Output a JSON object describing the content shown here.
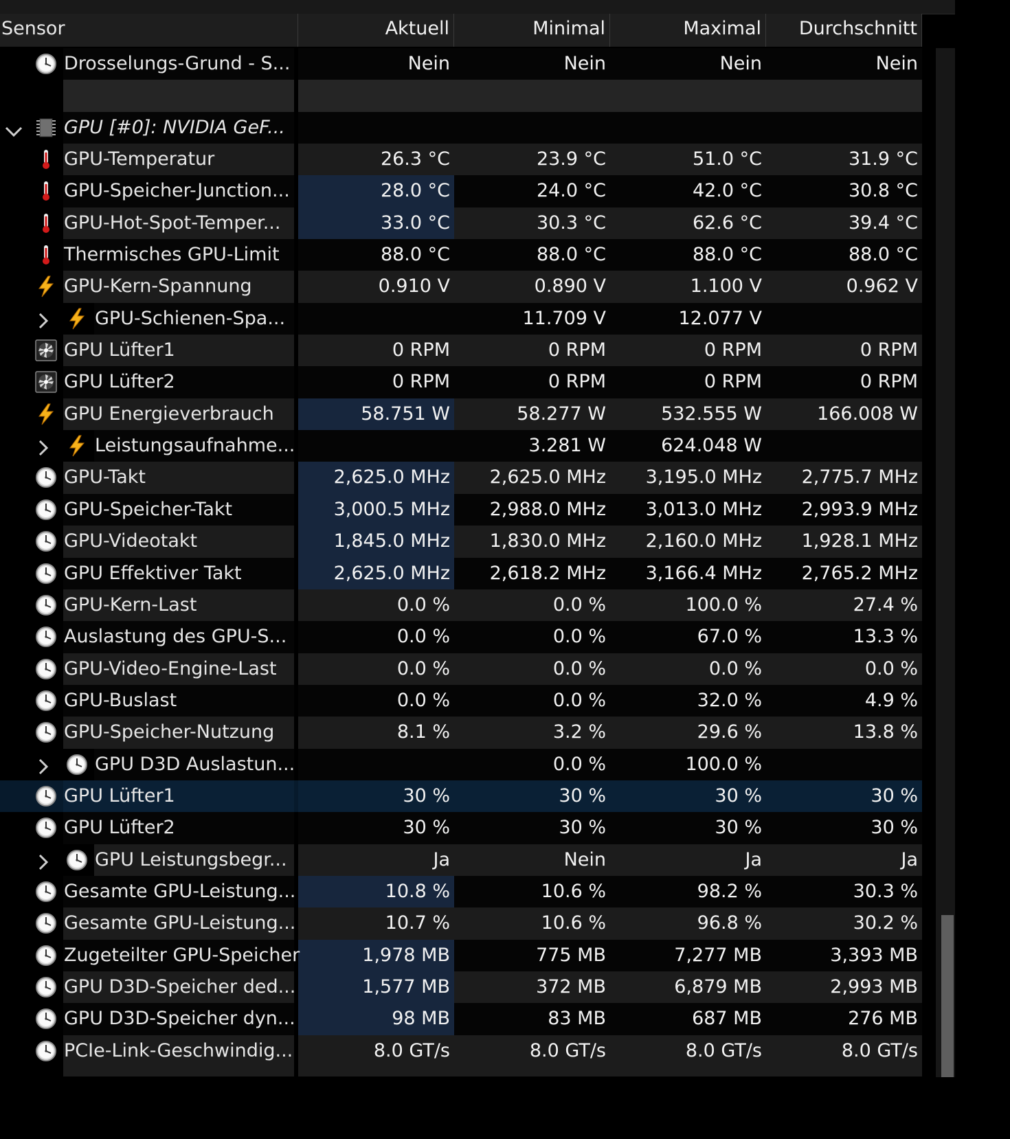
{
  "header": {
    "sensor": "Sensor",
    "current": "Aktuell",
    "min": "Minimal",
    "max": "Maximal",
    "avg": "Durchschnitt"
  },
  "rows": [
    {
      "label": "Drosselungs-Grund - S...",
      "icon": "clock-icon",
      "cur": "Nein",
      "min": "Nein",
      "max": "Nein",
      "avg": "Nein"
    },
    {
      "label": "",
      "blank": true,
      "cur": "",
      "min": "",
      "max": "",
      "avg": ""
    },
    {
      "label": "GPU [#0]: NVIDIA GeF...",
      "icon": "chip-icon",
      "group": true,
      "cur": "",
      "min": "",
      "max": "",
      "avg": ""
    },
    {
      "label": "GPU-Temperatur",
      "icon": "thermometer-icon",
      "cur": "26.3 °C",
      "min": "23.9 °C",
      "max": "51.0 °C",
      "avg": "31.9 °C"
    },
    {
      "label": "GPU-Speicher-Junction...",
      "icon": "thermometer-icon",
      "cur": "28.0 °C",
      "min": "24.0 °C",
      "max": "42.0 °C",
      "avg": "30.8 °C",
      "hl": true
    },
    {
      "label": "GPU-Hot-Spot-Temper...",
      "icon": "thermometer-icon",
      "cur": "33.0 °C",
      "min": "30.3 °C",
      "max": "62.6 °C",
      "avg": "39.4 °C",
      "hl": true
    },
    {
      "label": "Thermisches GPU-Limit",
      "icon": "thermometer-icon",
      "cur": "88.0 °C",
      "min": "88.0 °C",
      "max": "88.0 °C",
      "avg": "88.0 °C"
    },
    {
      "label": "GPU-Kern-Spannung",
      "icon": "lightning-icon",
      "cur": "0.910 V",
      "min": "0.890 V",
      "max": "1.100 V",
      "avg": "0.962 V"
    },
    {
      "label": "GPU-Schienen-Spa...",
      "icon": "lightning-icon",
      "child": true,
      "cur": "",
      "min": "11.709 V",
      "max": "12.077 V",
      "avg": ""
    },
    {
      "label": "GPU Lüfter1",
      "icon": "fan-icon",
      "cur": "0 RPM",
      "min": "0 RPM",
      "max": "0 RPM",
      "avg": "0 RPM"
    },
    {
      "label": "GPU Lüfter2",
      "icon": "fan-icon",
      "cur": "0 RPM",
      "min": "0 RPM",
      "max": "0 RPM",
      "avg": "0 RPM"
    },
    {
      "label": "GPU Energieverbrauch",
      "icon": "lightning-icon",
      "cur": "58.751 W",
      "min": "58.277 W",
      "max": "532.555 W",
      "avg": "166.008 W",
      "hl": true
    },
    {
      "label": "Leistungsaufnahme...",
      "icon": "lightning-icon",
      "child": true,
      "cur": "",
      "min": "3.281 W",
      "max": "624.048 W",
      "avg": ""
    },
    {
      "label": "GPU-Takt",
      "icon": "clock-icon",
      "cur": "2,625.0 MHz",
      "min": "2,625.0 MHz",
      "max": "3,195.0 MHz",
      "avg": "2,775.7 MHz",
      "hl": true
    },
    {
      "label": "GPU-Speicher-Takt",
      "icon": "clock-icon",
      "cur": "3,000.5 MHz",
      "min": "2,988.0 MHz",
      "max": "3,013.0 MHz",
      "avg": "2,993.9 MHz",
      "hl": true
    },
    {
      "label": "GPU-Videotakt",
      "icon": "clock-icon",
      "cur": "1,845.0 MHz",
      "min": "1,830.0 MHz",
      "max": "2,160.0 MHz",
      "avg": "1,928.1 MHz",
      "hl": true
    },
    {
      "label": "GPU Effektiver Takt",
      "icon": "clock-icon",
      "cur": "2,625.0 MHz",
      "min": "2,618.2 MHz",
      "max": "3,166.4 MHz",
      "avg": "2,765.2 MHz",
      "hl": true
    },
    {
      "label": "GPU-Kern-Last",
      "icon": "clock-icon",
      "cur": "0.0 %",
      "min": "0.0 %",
      "max": "100.0 %",
      "avg": "27.4 %"
    },
    {
      "label": "Auslastung des GPU-S...",
      "icon": "clock-icon",
      "cur": "0.0 %",
      "min": "0.0 %",
      "max": "67.0 %",
      "avg": "13.3 %"
    },
    {
      "label": "GPU-Video-Engine-Last",
      "icon": "clock-icon",
      "cur": "0.0 %",
      "min": "0.0 %",
      "max": "0.0 %",
      "avg": "0.0 %"
    },
    {
      "label": "GPU-Buslast",
      "icon": "clock-icon",
      "cur": "0.0 %",
      "min": "0.0 %",
      "max": "32.0 %",
      "avg": "4.9 %"
    },
    {
      "label": "GPU-Speicher-Nutzung",
      "icon": "clock-icon",
      "cur": "8.1 %",
      "min": "3.2 %",
      "max": "29.6 %",
      "avg": "13.8 %"
    },
    {
      "label": "GPU D3D Auslastun...",
      "icon": "clock-icon",
      "child": true,
      "cur": "",
      "min": "0.0 %",
      "max": "100.0 %",
      "avg": ""
    },
    {
      "label": "GPU Lüfter1",
      "icon": "clock-icon",
      "cur": "30 %",
      "min": "30 %",
      "max": "30 %",
      "avg": "30 %",
      "selected": true
    },
    {
      "label": "GPU Lüfter2",
      "icon": "clock-icon",
      "cur": "30 %",
      "min": "30 %",
      "max": "30 %",
      "avg": "30 %"
    },
    {
      "label": "GPU Leistungsbegr...",
      "icon": "clock-icon",
      "child": true,
      "cur": "Ja",
      "min": "Nein",
      "max": "Ja",
      "avg": "Ja"
    },
    {
      "label": "Gesamte GPU-Leistung...",
      "icon": "clock-icon",
      "cur": "10.8 %",
      "min": "10.6 %",
      "max": "98.2 %",
      "avg": "30.3 %",
      "hl": true
    },
    {
      "label": "Gesamte GPU-Leistung...",
      "icon": "clock-icon",
      "cur": "10.7 %",
      "min": "10.6 %",
      "max": "96.8 %",
      "avg": "30.2 %"
    },
    {
      "label": "Zugeteilter GPU-Speicher",
      "icon": "clock-icon",
      "cur": "1,978 MB",
      "min": "775 MB",
      "max": "7,277 MB",
      "avg": "3,393 MB",
      "hl": true
    },
    {
      "label": "GPU D3D-Speicher ded...",
      "icon": "clock-icon",
      "cur": "1,577 MB",
      "min": "372 MB",
      "max": "6,879 MB",
      "avg": "2,993 MB",
      "hl": true
    },
    {
      "label": "GPU D3D-Speicher dyn...",
      "icon": "clock-icon",
      "cur": "98 MB",
      "min": "83 MB",
      "max": "687 MB",
      "avg": "276 MB",
      "hl": true
    },
    {
      "label": "PCIe-Link-Geschwindig...",
      "icon": "clock-icon",
      "cur": "8.0 GT/s",
      "min": "8.0 GT/s",
      "max": "8.0 GT/s",
      "avg": "8.0 GT/s"
    }
  ],
  "colors": {
    "highlight": "#17263d",
    "selected": "#0a2035",
    "rowLight": "#1c1c1c",
    "rowDark": "#050505"
  }
}
